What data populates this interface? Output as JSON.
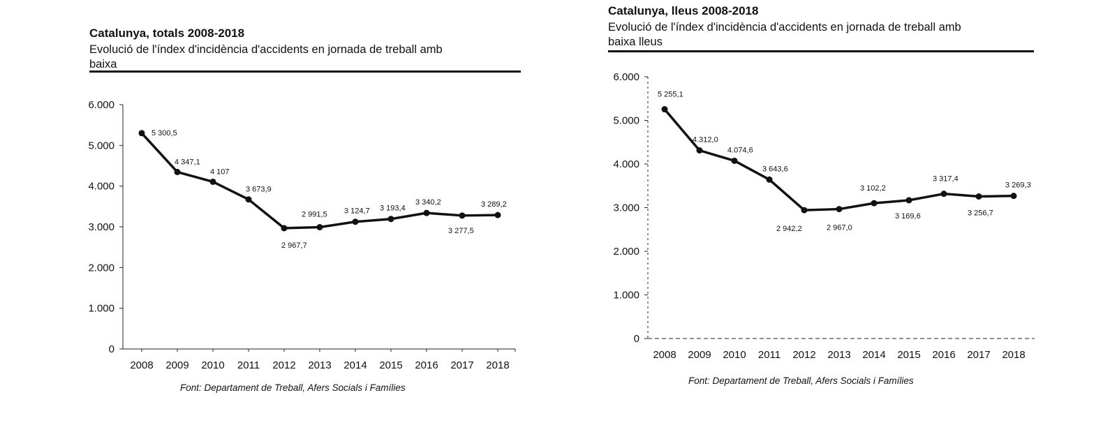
{
  "chart_data": [
    {
      "type": "line",
      "title": "Catalunya, totals 2008-2018",
      "subtitle": "Evolució de l'índex d'incidència d'accidents en jornada de treball amb baixa",
      "source": "Font: Departament de Treball, Afers Socials i Famílies",
      "x": [
        "2008",
        "2009",
        "2010",
        "2011",
        "2012",
        "2013",
        "2014",
        "2015",
        "2016",
        "2017",
        "2018"
      ],
      "values": [
        5300.5,
        4347.1,
        4107,
        3673.9,
        2967.7,
        2991.5,
        3124.7,
        3193.4,
        3340.2,
        3277.5,
        3289.2
      ],
      "data_labels": [
        "5 300,5",
        "4 347,1",
        "4 107",
        "3 673,9",
        "2 967,7",
        "2 991,5",
        "3 124,7",
        "3 193,4",
        "3 340,2",
        "3 277,5",
        "3 289,2"
      ],
      "yticks": [
        0,
        1000,
        2000,
        3000,
        4000,
        5000,
        6000
      ],
      "ytick_labels": [
        "0",
        "1.000",
        "2.000",
        "3.000",
        "4.000",
        "5.000",
        "6.000"
      ],
      "ylim": [
        0,
        6000
      ],
      "grid": false
    },
    {
      "type": "line",
      "title": "Catalunya, lleus 2008-2018",
      "subtitle": "Evolució de l'índex d'incidència d'accidents en jornada de treball amb baixa lleus",
      "source": "Font: Departament de Treball, Afers Socials i Famílies",
      "x": [
        "2008",
        "2009",
        "2010",
        "2011",
        "2012",
        "2013",
        "2014",
        "2015",
        "2016",
        "2017",
        "2018"
      ],
      "values": [
        5255.1,
        4312.0,
        4074.6,
        3643.6,
        2942.2,
        2967.0,
        3102.2,
        3169.6,
        3317.4,
        3256.7,
        3269.3
      ],
      "data_labels": [
        "5 255,1",
        "4.312,0",
        "4.074,6",
        "3 643,6",
        "2 942,2",
        "2 967,0",
        "3 102,2",
        "3 169,6",
        "3 317,4",
        "3 256,7",
        "3 269,3"
      ],
      "yticks": [
        0,
        1000,
        2000,
        3000,
        4000,
        5000,
        6000
      ],
      "ytick_labels": [
        "0",
        "1.000",
        "2.000",
        "3.000",
        "4.000",
        "5.000",
        "6.000"
      ],
      "ylim": [
        0,
        6000
      ],
      "grid": false
    }
  ]
}
